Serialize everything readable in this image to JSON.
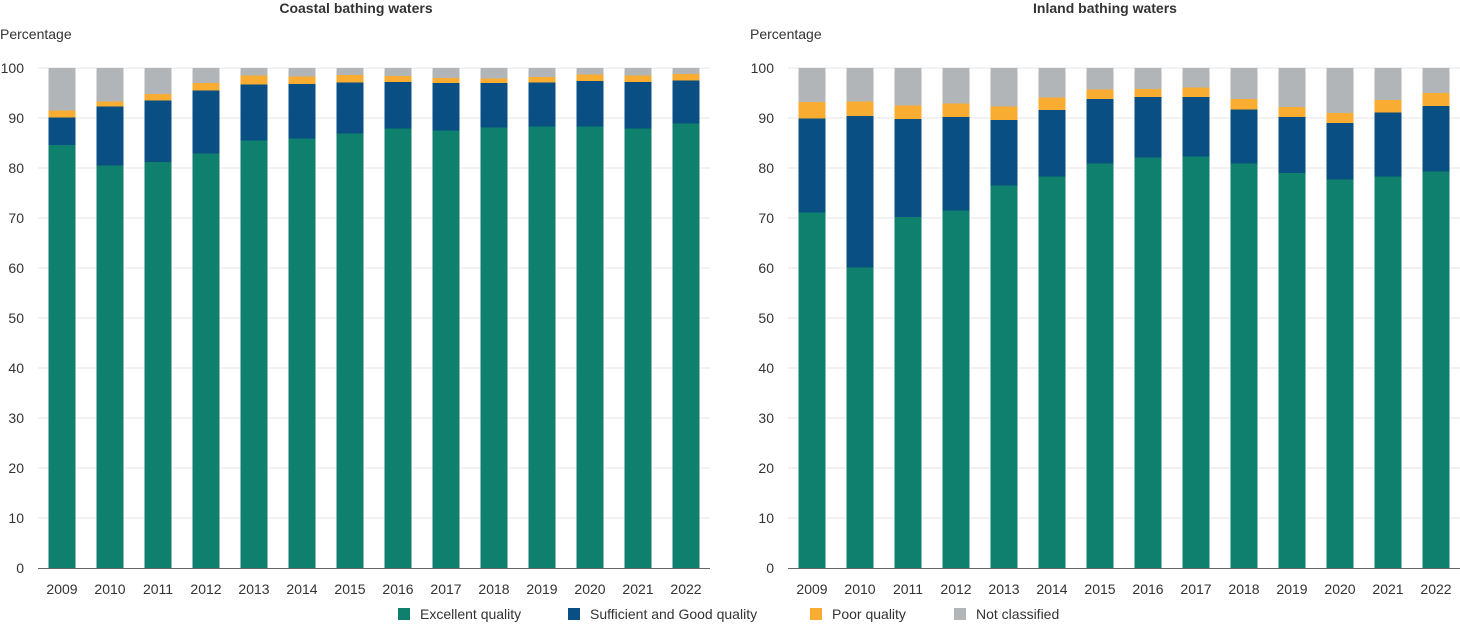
{
  "chart_data": [
    {
      "type": "bar",
      "stacked": true,
      "title": "Coastal bathing waters",
      "ylabel": "Percentage",
      "ylim": [
        0,
        100
      ],
      "yticks": [
        0,
        10,
        20,
        30,
        40,
        50,
        60,
        70,
        80,
        90,
        100
      ],
      "grid": true,
      "categories": [
        "2009",
        "2010",
        "2011",
        "2012",
        "2013",
        "2014",
        "2015",
        "2016",
        "2017",
        "2018",
        "2019",
        "2020",
        "2021",
        "2022"
      ],
      "series": [
        {
          "name": "Excellent quality",
          "color": "#0f7f6e",
          "values": [
            84.6,
            80.5,
            81.2,
            82.9,
            85.5,
            85.9,
            86.9,
            87.9,
            87.5,
            88.1,
            88.3,
            88.3,
            87.9,
            88.9
          ]
        },
        {
          "name": "Sufficient and Good quality",
          "color": "#0a4f84",
          "values": [
            5.5,
            11.8,
            12.3,
            12.6,
            11.2,
            10.9,
            10.2,
            9.3,
            9.5,
            8.9,
            8.8,
            9.1,
            9.3,
            8.6
          ]
        },
        {
          "name": "Poor quality",
          "color": "#f8ad32",
          "values": [
            1.4,
            1.0,
            1.3,
            1.5,
            1.8,
            1.5,
            1.5,
            1.2,
            1.0,
            0.9,
            1.1,
            1.3,
            1.3,
            1.3
          ]
        },
        {
          "name": "Not classified",
          "color": "#b2b5b7",
          "values": [
            8.5,
            6.7,
            5.2,
            3.0,
            1.5,
            1.7,
            1.4,
            1.6,
            2.0,
            2.1,
            1.8,
            1.3,
            1.5,
            1.2
          ]
        }
      ]
    },
    {
      "type": "bar",
      "stacked": true,
      "title": "Inland bathing waters",
      "ylabel": "Percentage",
      "ylim": [
        0,
        100
      ],
      "yticks": [
        0,
        10,
        20,
        30,
        40,
        50,
        60,
        70,
        80,
        90,
        100
      ],
      "grid": true,
      "categories": [
        "2009",
        "2010",
        "2011",
        "2012",
        "2013",
        "2014",
        "2015",
        "2016",
        "2017",
        "2018",
        "2019",
        "2020",
        "2021",
        "2022"
      ],
      "series": [
        {
          "name": "Excellent quality",
          "color": "#0f7f6e",
          "values": [
            71.1,
            60.1,
            70.2,
            71.5,
            76.5,
            78.3,
            80.9,
            82.1,
            82.3,
            80.9,
            79.0,
            77.7,
            78.3,
            79.3
          ]
        },
        {
          "name": "Sufficient and Good quality",
          "color": "#0a4f84",
          "values": [
            18.8,
            30.3,
            19.6,
            18.7,
            13.1,
            13.3,
            12.9,
            12.1,
            11.9,
            10.8,
            11.2,
            11.3,
            12.8,
            13.1
          ]
        },
        {
          "name": "Poor quality",
          "color": "#f8ad32",
          "values": [
            3.3,
            2.9,
            2.7,
            2.7,
            2.7,
            2.5,
            1.9,
            1.6,
            1.9,
            2.1,
            2.0,
            2.0,
            2.5,
            2.6
          ]
        },
        {
          "name": "Not classified",
          "color": "#b2b5b7",
          "values": [
            6.8,
            6.7,
            7.5,
            7.1,
            7.7,
            5.9,
            4.3,
            4.2,
            3.9,
            6.2,
            7.8,
            9.0,
            6.4,
            5.0
          ]
        }
      ]
    }
  ],
  "legend": [
    {
      "label": "Excellent quality",
      "color": "#0f7f6e"
    },
    {
      "label": "Sufficient and Good quality",
      "color": "#0a4f84"
    },
    {
      "label": "Poor quality",
      "color": "#f8ad32"
    },
    {
      "label": "Not classified",
      "color": "#b2b5b7"
    }
  ]
}
